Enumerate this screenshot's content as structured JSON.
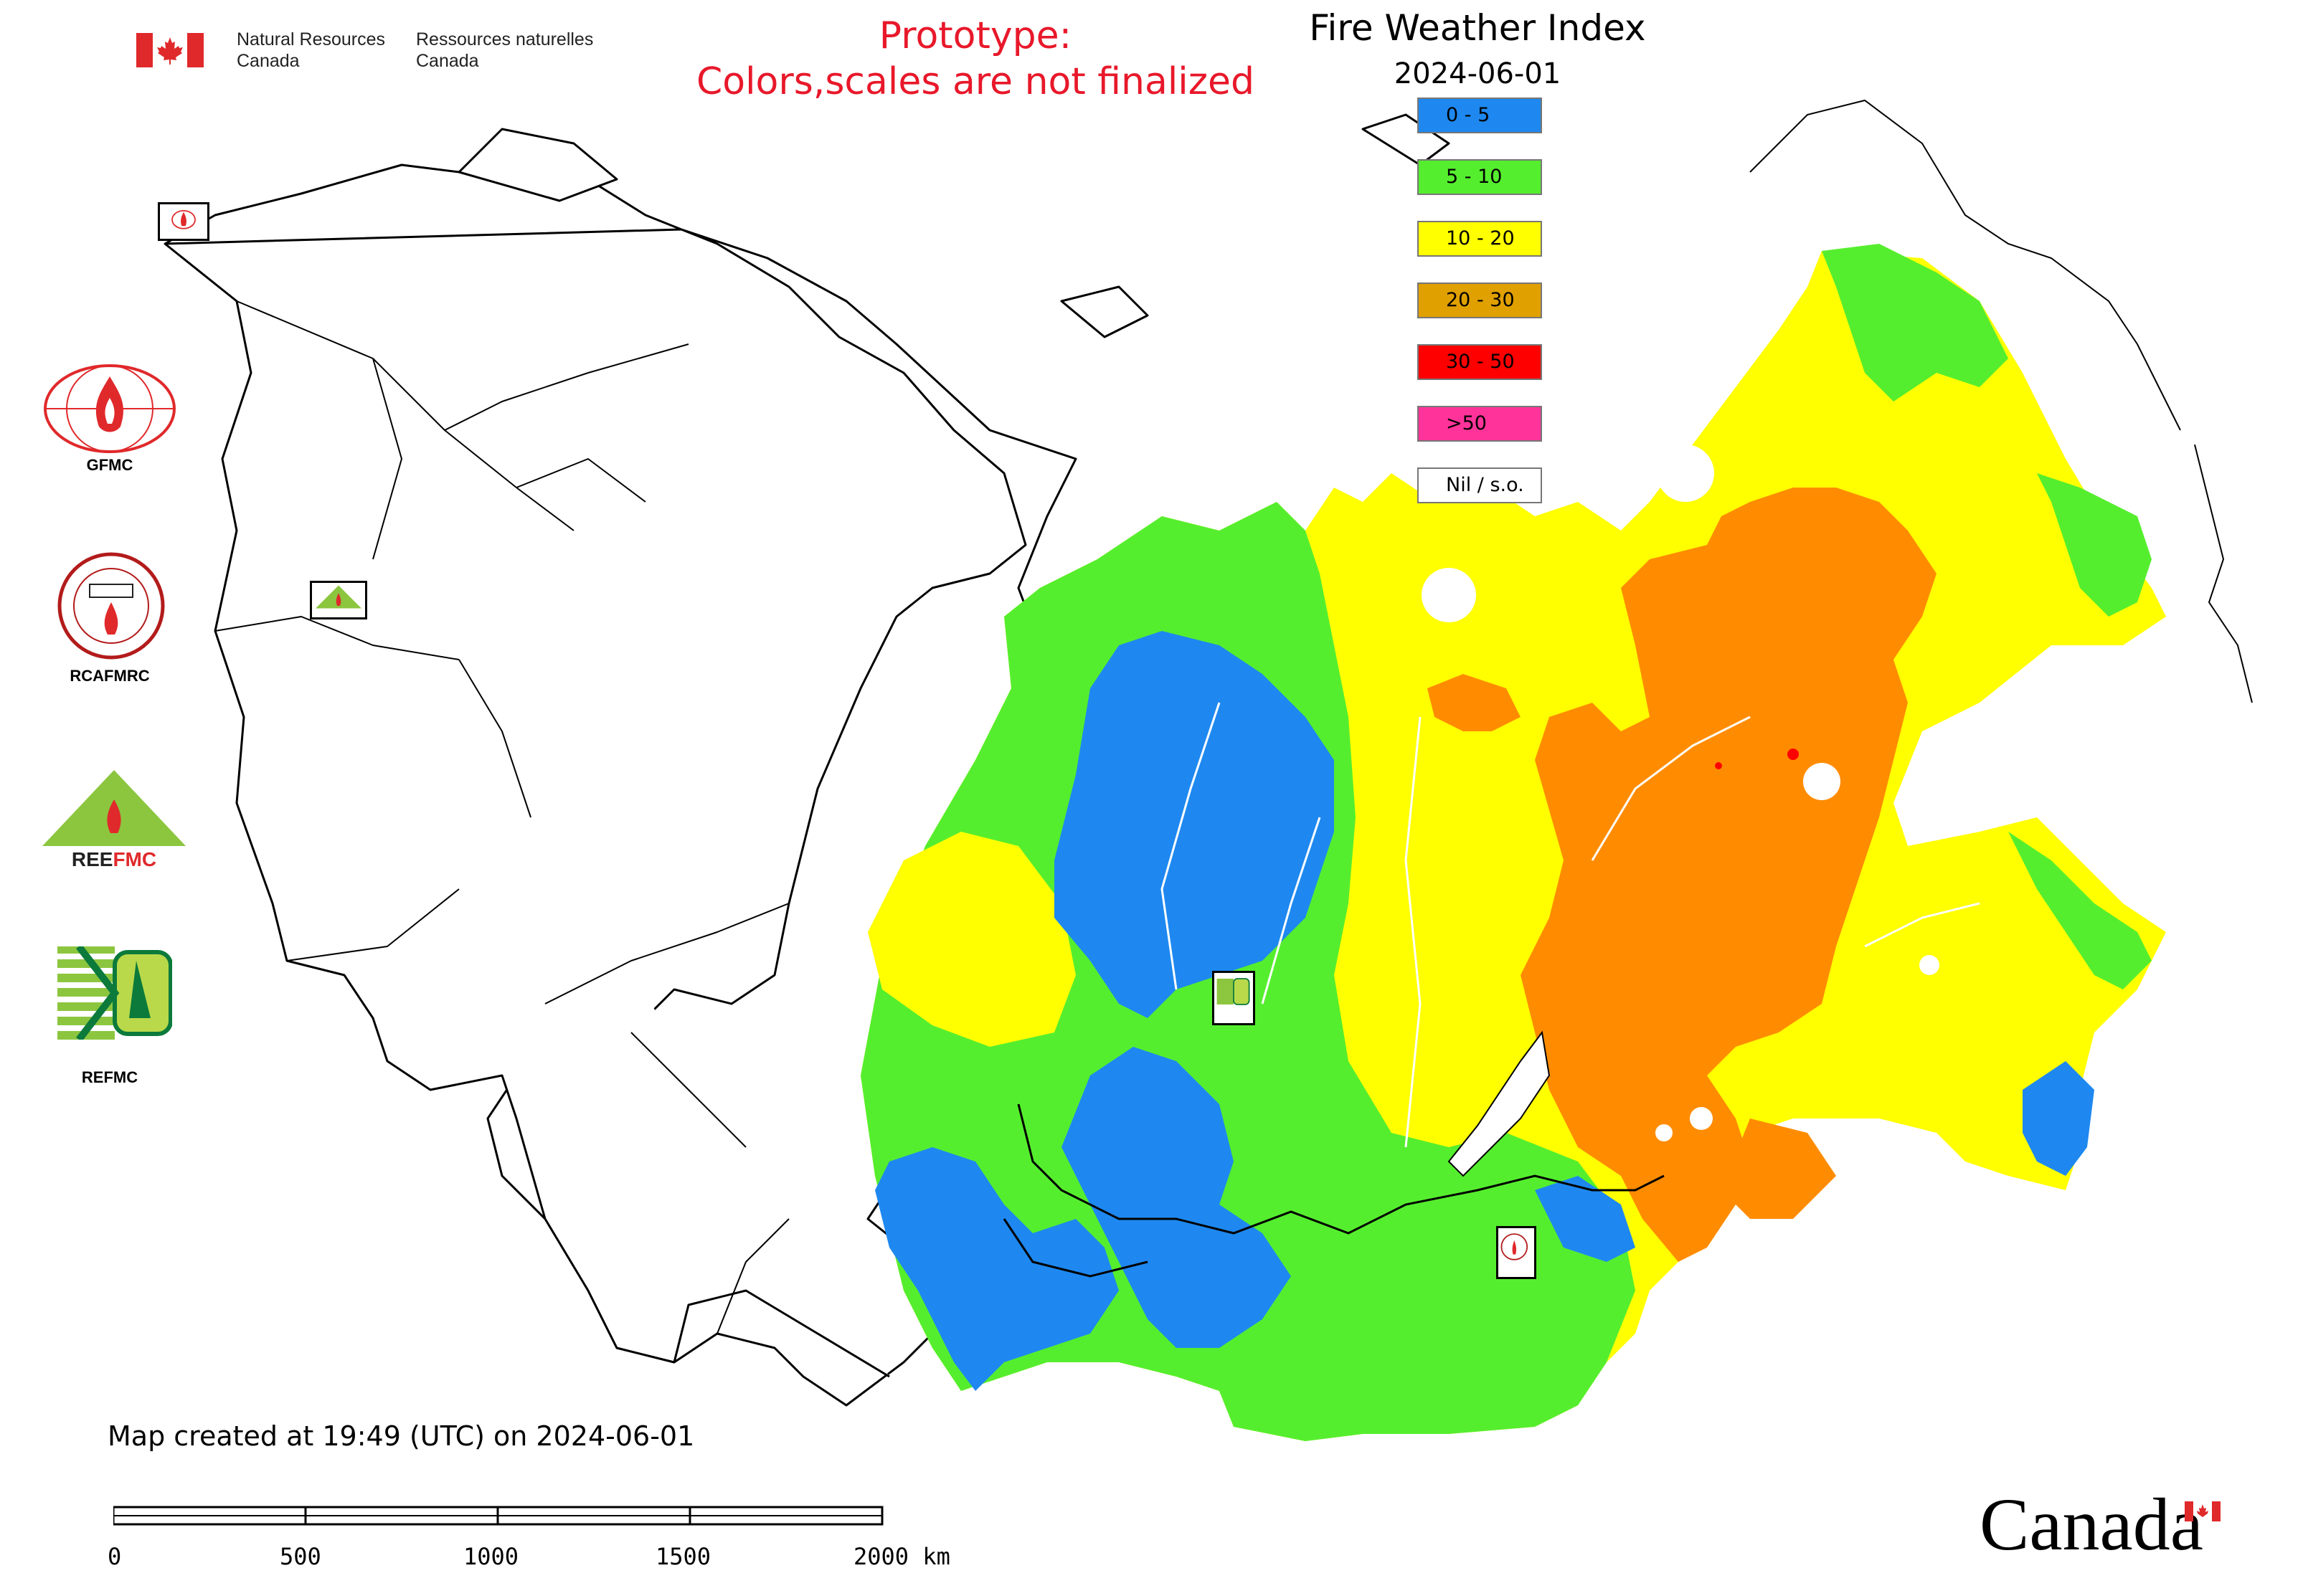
{
  "header": {
    "department_en_line1": "Natural Resources",
    "department_en_line2": "Canada",
    "department_fr_line1": "Ressources naturelles",
    "department_fr_line2": "Canada",
    "prototype_line1": "Prototype:",
    "prototype_line2": "Colors,scales are not finalized",
    "map_title": "Fire Weather Index",
    "map_date": "2024-06-01"
  },
  "legend": [
    {
      "label": "0 - 5",
      "color": "#1e88f0"
    },
    {
      "label": "5 - 10",
      "color": "#55ee2e"
    },
    {
      "label": "10 - 20",
      "color": "#ffff00"
    },
    {
      "label": "20 - 30",
      "color": "#e0a000"
    },
    {
      "label": "30 - 50",
      "color": "#ff0000"
    },
    {
      "label": ">50",
      "color": "#ff3399"
    },
    {
      "label": "Nil / s.o.",
      "color": "#ffffff"
    }
  ],
  "centres": [
    {
      "name": "GFMC"
    },
    {
      "name": "RCAFMRC"
    },
    {
      "name": "REEFMC"
    },
    {
      "name": "REFMC"
    }
  ],
  "footer": {
    "created": "Map created at 19:49 (UTC) on 2024-06-01",
    "scale_ticks": [
      "0",
      "500",
      "1000",
      "1500",
      "2000 km"
    ],
    "wordmark": "Canada"
  },
  "colors": {
    "blue": "#1e88f0",
    "green": "#55ee2e",
    "yellow": "#ffff00",
    "orange": "#ff8c00",
    "red": "#ff0000",
    "prototype_red": "#e8182a",
    "flag_red": "#e0292b"
  },
  "icons": {
    "flag": "canada-flag-icon",
    "gfmc": "gfmc-logo-icon",
    "rcafmrc": "rcafmrc-logo-icon",
    "reefmc": "reefmc-logo-icon",
    "refmc": "refmc-logo-icon"
  }
}
